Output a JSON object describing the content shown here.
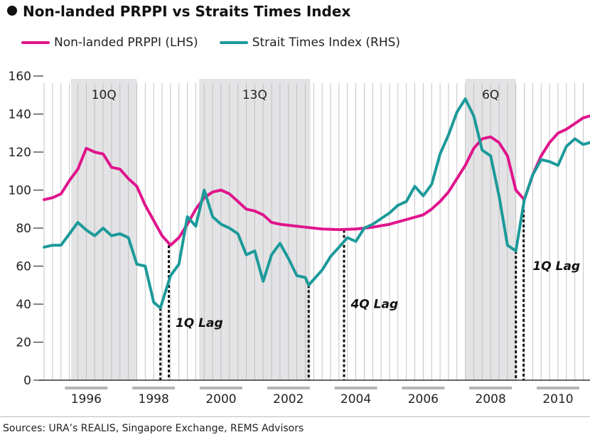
{
  "title": "Non-landed PRPPI vs Straits Times Index",
  "legend": {
    "items": [
      {
        "label": "Non-landed PRPPI (LHS)",
        "color": "#e0148c"
      },
      {
        "label": "Strait Times Index (RHS)",
        "color": "#1c9a9a"
      }
    ]
  },
  "source": "Sources: URA’s REALIS, Singapore Exchange, REMS Advisors",
  "chart_data": {
    "type": "line",
    "title": "Non-landed PRPPI vs Straits Times Index",
    "ylim": [
      0,
      160
    ],
    "yticks": [
      0,
      20,
      40,
      60,
      80,
      100,
      120,
      140,
      160
    ],
    "xlim": [
      1994.6,
      2010.95
    ],
    "xticks": [
      {
        "x": 1996.0,
        "label": "1996"
      },
      {
        "x": 1998.0,
        "label": "1998"
      },
      {
        "x": 2000.0,
        "label": "2000"
      },
      {
        "x": 2002.0,
        "label": "2002"
      },
      {
        "x": 2004.0,
        "label": "2004"
      },
      {
        "x": 2006.0,
        "label": "2006"
      },
      {
        "x": 2008.0,
        "label": "2008"
      },
      {
        "x": 2010.0,
        "label": "2010"
      }
    ],
    "quarter_gridlines": true,
    "shaded_periods": [
      {
        "start": 1995.55,
        "end": 1997.5,
        "label": "10Q"
      },
      {
        "start": 1999.35,
        "end": 2002.65,
        "label": "13Q"
      },
      {
        "start": 2007.25,
        "end": 2008.75,
        "label": "6Q"
      }
    ],
    "lag_markers": [
      {
        "x1": 1998.2,
        "y1": 38,
        "x2": 1998.45,
        "y2": 71,
        "label": "1Q Lag",
        "label_x": 1998.65,
        "label_y": 28
      },
      {
        "x1": 2002.6,
        "y1": 50,
        "x2": 2002.6,
        "y2": 50,
        "label": "",
        "label_x": null,
        "label_y": null
      },
      {
        "x1": 2003.65,
        "y1": 79,
        "x2": 2003.65,
        "y2": 79,
        "label": "4Q Lag",
        "label_x": 2003.85,
        "label_y": 38
      },
      {
        "x1": 2008.75,
        "y1": 68,
        "x2": 2008.98,
        "y2": 95,
        "label": "1Q Lag",
        "label_x": 2009.25,
        "label_y": 58
      }
    ],
    "series": [
      {
        "name": "Non-landed PRPPI (LHS)",
        "color": "#e0148c",
        "points": [
          [
            1994.75,
            95
          ],
          [
            1995.0,
            96
          ],
          [
            1995.25,
            98
          ],
          [
            1995.5,
            105
          ],
          [
            1995.75,
            111
          ],
          [
            1996.0,
            122
          ],
          [
            1996.25,
            120
          ],
          [
            1996.5,
            119
          ],
          [
            1996.75,
            112
          ],
          [
            1997.0,
            111
          ],
          [
            1997.25,
            106
          ],
          [
            1997.5,
            102
          ],
          [
            1997.75,
            92
          ],
          [
            1998.0,
            84
          ],
          [
            1998.25,
            76
          ],
          [
            1998.5,
            71
          ],
          [
            1998.75,
            75
          ],
          [
            1999.0,
            82
          ],
          [
            1999.25,
            90
          ],
          [
            1999.5,
            96
          ],
          [
            1999.75,
            99
          ],
          [
            2000.0,
            100
          ],
          [
            2000.25,
            98
          ],
          [
            2000.5,
            94
          ],
          [
            2000.75,
            90
          ],
          [
            2001.0,
            89
          ],
          [
            2001.25,
            87
          ],
          [
            2001.5,
            83
          ],
          [
            2001.75,
            82
          ],
          [
            2002.0,
            81.5
          ],
          [
            2002.5,
            80.5
          ],
          [
            2003.0,
            79.5
          ],
          [
            2003.5,
            79.2
          ],
          [
            2004.0,
            79.5
          ],
          [
            2004.5,
            80.5
          ],
          [
            2005.0,
            82
          ],
          [
            2005.5,
            84.5
          ],
          [
            2006.0,
            87
          ],
          [
            2006.25,
            90
          ],
          [
            2006.5,
            94
          ],
          [
            2006.75,
            99
          ],
          [
            2007.0,
            106
          ],
          [
            2007.25,
            113
          ],
          [
            2007.5,
            122
          ],
          [
            2007.75,
            127
          ],
          [
            2008.0,
            128
          ],
          [
            2008.25,
            125
          ],
          [
            2008.5,
            118
          ],
          [
            2008.75,
            100
          ],
          [
            2009.0,
            95
          ],
          [
            2009.25,
            108
          ],
          [
            2009.5,
            118
          ],
          [
            2009.75,
            125
          ],
          [
            2010.0,
            130
          ],
          [
            2010.25,
            132
          ],
          [
            2010.5,
            135
          ],
          [
            2010.75,
            138
          ],
          [
            2010.95,
            139
          ]
        ]
      },
      {
        "name": "Strait Times Index (RHS)",
        "color": "#1c9a9a",
        "points": [
          [
            1994.75,
            70
          ],
          [
            1995.0,
            71
          ],
          [
            1995.25,
            71
          ],
          [
            1995.5,
            77
          ],
          [
            1995.75,
            83
          ],
          [
            1996.0,
            79
          ],
          [
            1996.25,
            76
          ],
          [
            1996.5,
            80
          ],
          [
            1996.75,
            76
          ],
          [
            1997.0,
            77
          ],
          [
            1997.25,
            75
          ],
          [
            1997.5,
            61
          ],
          [
            1997.75,
            60
          ],
          [
            1998.0,
            41
          ],
          [
            1998.2,
            38
          ],
          [
            1998.5,
            55
          ],
          [
            1998.75,
            61
          ],
          [
            1999.0,
            86
          ],
          [
            1999.25,
            81
          ],
          [
            1999.5,
            100
          ],
          [
            1999.75,
            86
          ],
          [
            2000.0,
            82
          ],
          [
            2000.25,
            80
          ],
          [
            2000.5,
            77
          ],
          [
            2000.75,
            66
          ],
          [
            2001.0,
            68
          ],
          [
            2001.25,
            52
          ],
          [
            2001.5,
            66
          ],
          [
            2001.75,
            72
          ],
          [
            2002.0,
            64
          ],
          [
            2002.25,
            55
          ],
          [
            2002.5,
            54
          ],
          [
            2002.6,
            50
          ],
          [
            2003.0,
            58
          ],
          [
            2003.25,
            65
          ],
          [
            2003.5,
            70
          ],
          [
            2003.75,
            75
          ],
          [
            2004.0,
            73
          ],
          [
            2004.25,
            80
          ],
          [
            2004.5,
            82
          ],
          [
            2004.75,
            85
          ],
          [
            2005.0,
            88
          ],
          [
            2005.25,
            92
          ],
          [
            2005.5,
            94
          ],
          [
            2005.75,
            102
          ],
          [
            2006.0,
            97
          ],
          [
            2006.25,
            103
          ],
          [
            2006.5,
            119
          ],
          [
            2006.75,
            129
          ],
          [
            2007.0,
            141
          ],
          [
            2007.25,
            148
          ],
          [
            2007.5,
            139
          ],
          [
            2007.75,
            121
          ],
          [
            2008.0,
            118
          ],
          [
            2008.25,
            97
          ],
          [
            2008.5,
            71
          ],
          [
            2008.75,
            68
          ],
          [
            2009.0,
            95
          ],
          [
            2009.25,
            108
          ],
          [
            2009.5,
            116
          ],
          [
            2009.75,
            115
          ],
          [
            2010.0,
            113
          ],
          [
            2010.25,
            123
          ],
          [
            2010.5,
            127
          ],
          [
            2010.75,
            124
          ],
          [
            2010.95,
            125
          ]
        ]
      }
    ]
  }
}
